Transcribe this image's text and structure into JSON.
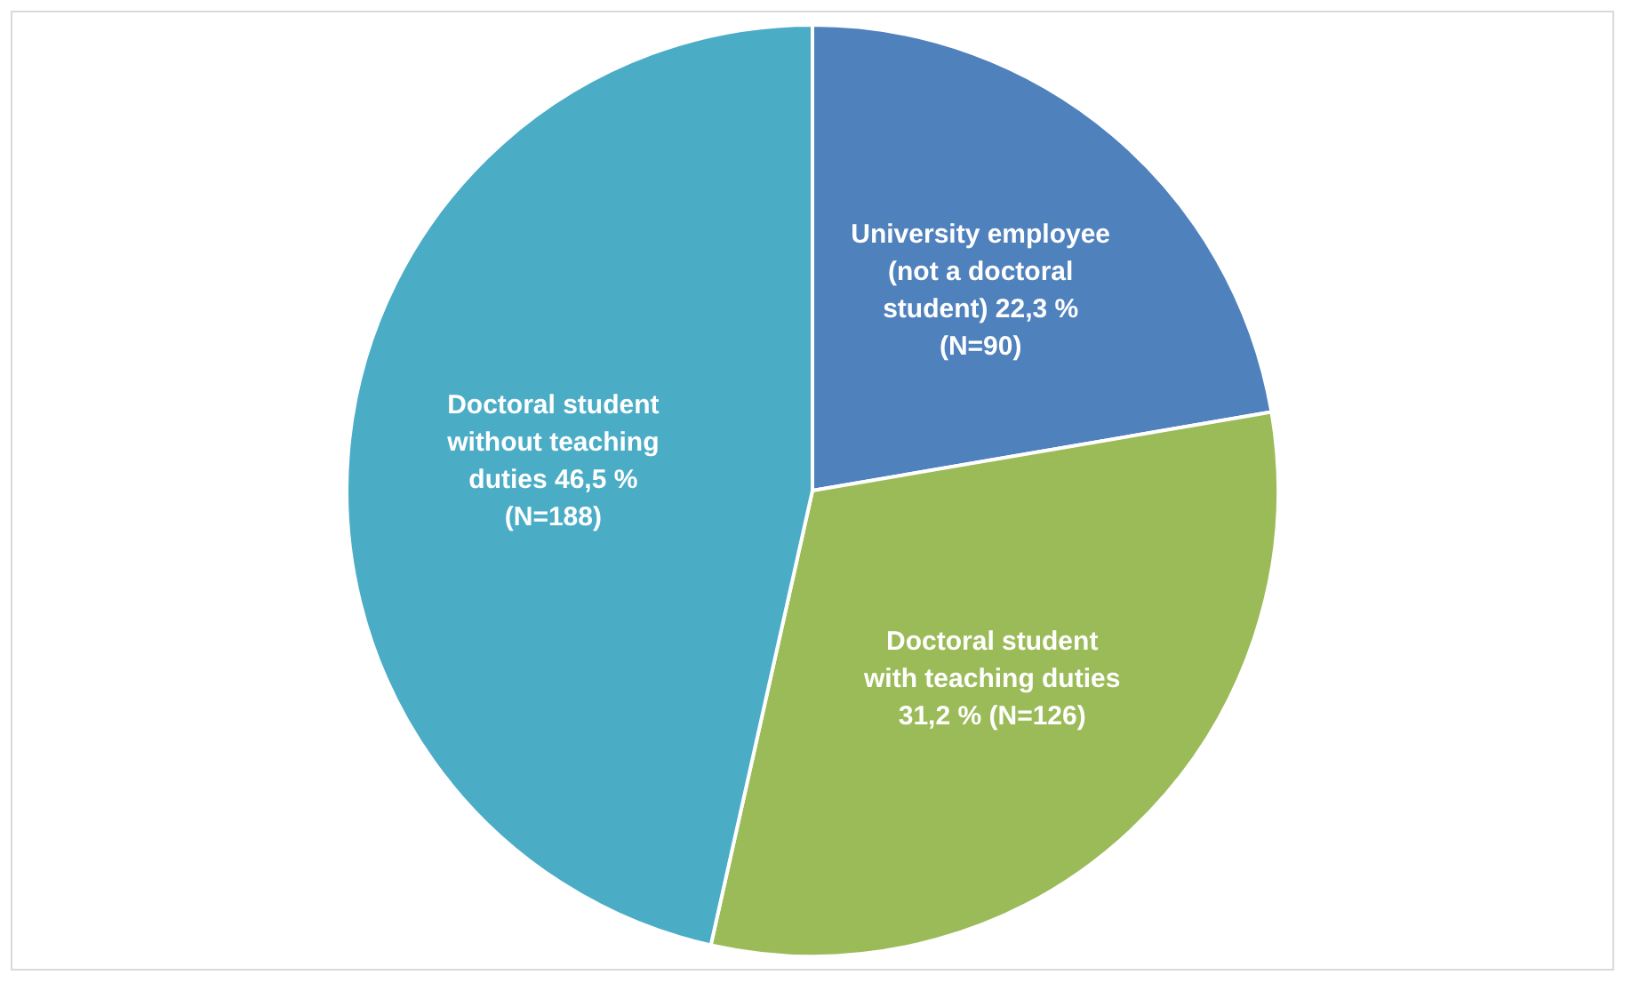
{
  "chart_data": {
    "type": "pie",
    "categories": [
      "University employee (not a doctoral student)",
      "Doctoral student with teaching duties",
      "Doctoral student without teaching duties"
    ],
    "values": [
      22.3,
      31.2,
      46.5
    ],
    "value_labels": [
      "22,3 % (N=90)",
      "31,2 % (N=126)",
      "46,5 % (N=188)"
    ],
    "colors": [
      "#4f81bd",
      "#9bbb59",
      "#4bacc6"
    ],
    "legend": false
  }
}
